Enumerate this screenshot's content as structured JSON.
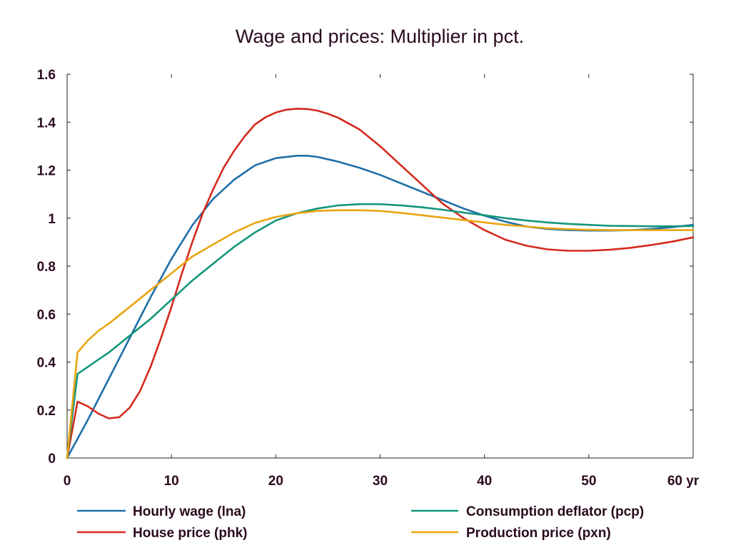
{
  "chart_data": {
    "type": "line",
    "title": "Wage and prices: Multiplier in pct.",
    "xlabel": "",
    "ylabel": "",
    "xlim": [
      0,
      60
    ],
    "ylim": [
      0,
      1.6
    ],
    "x_ticks": [
      0,
      10,
      20,
      30,
      40,
      50,
      60
    ],
    "x_tick_labels": [
      "0",
      "10",
      "20",
      "30",
      "40",
      "50",
      "60 yr"
    ],
    "y_ticks": [
      0,
      0.2,
      0.4,
      0.6,
      0.8,
      1,
      1.2,
      1.4,
      1.6
    ],
    "y_tick_labels": [
      "0",
      "0.2",
      "0.4",
      "0.6",
      "0.8",
      "1",
      "1.2",
      "1.4",
      "1.6"
    ],
    "grid": false,
    "legend_position": "bottom",
    "series": [
      {
        "name": "Hourly wage (lna)",
        "color": "#1f6fa8",
        "x": [
          0,
          2,
          4,
          6,
          8,
          10,
          12,
          14,
          16,
          18,
          20,
          22,
          23,
          24,
          26,
          28,
          30,
          32,
          34,
          36,
          38,
          40,
          42,
          44,
          46,
          48,
          50,
          52,
          54,
          56,
          58,
          60
        ],
        "y": [
          0,
          0.16,
          0.33,
          0.5,
          0.67,
          0.83,
          0.97,
          1.08,
          1.16,
          1.22,
          1.25,
          1.26,
          1.26,
          1.255,
          1.235,
          1.21,
          1.18,
          1.145,
          1.11,
          1.075,
          1.04,
          1.01,
          0.985,
          0.965,
          0.955,
          0.95,
          0.948,
          0.948,
          0.95,
          0.955,
          0.962,
          0.972
        ]
      },
      {
        "name": "House price (phk)",
        "color": "#d42a1e",
        "x": [
          0,
          1,
          2,
          3,
          4,
          5,
          6,
          7,
          8,
          9,
          10,
          11,
          12,
          13,
          14,
          15,
          16,
          17,
          18,
          19,
          20,
          21,
          22,
          23,
          24,
          25,
          26,
          28,
          30,
          32,
          34,
          36,
          38,
          40,
          42,
          44,
          46,
          48,
          50,
          52,
          54,
          56,
          58,
          60
        ],
        "y": [
          0,
          0.235,
          0.215,
          0.185,
          0.165,
          0.17,
          0.21,
          0.28,
          0.38,
          0.5,
          0.63,
          0.77,
          0.9,
          1.02,
          1.12,
          1.21,
          1.28,
          1.34,
          1.39,
          1.42,
          1.44,
          1.452,
          1.456,
          1.455,
          1.448,
          1.435,
          1.418,
          1.37,
          1.3,
          1.22,
          1.14,
          1.06,
          1.0,
          0.95,
          0.91,
          0.885,
          0.87,
          0.864,
          0.864,
          0.868,
          0.876,
          0.888,
          0.902,
          0.92
        ]
      },
      {
        "name": "Consumption deflator (pcp)",
        "color": "#13957a",
        "x": [
          0,
          1,
          2,
          3,
          4,
          6,
          8,
          10,
          12,
          14,
          16,
          18,
          20,
          22,
          24,
          26,
          28,
          30,
          32,
          34,
          36,
          38,
          40,
          42,
          44,
          46,
          48,
          50,
          52,
          54,
          56,
          58,
          60
        ],
        "y": [
          0,
          0.35,
          0.38,
          0.41,
          0.44,
          0.51,
          0.58,
          0.66,
          0.74,
          0.81,
          0.88,
          0.94,
          0.99,
          1.02,
          1.04,
          1.053,
          1.058,
          1.058,
          1.053,
          1.045,
          1.035,
          1.023,
          1.012,
          1.0,
          0.99,
          0.982,
          0.976,
          0.972,
          0.968,
          0.967,
          0.966,
          0.966,
          0.967
        ]
      },
      {
        "name": "Production price (pxn)",
        "color": "#e8a510",
        "x": [
          0,
          1,
          2,
          3,
          4,
          6,
          8,
          10,
          12,
          14,
          16,
          18,
          20,
          22,
          24,
          26,
          28,
          30,
          32,
          34,
          36,
          38,
          40,
          42,
          44,
          46,
          48,
          50,
          52,
          54,
          56,
          58,
          60
        ],
        "y": [
          0,
          0.44,
          0.49,
          0.53,
          0.56,
          0.63,
          0.7,
          0.77,
          0.84,
          0.89,
          0.94,
          0.98,
          1.005,
          1.02,
          1.03,
          1.033,
          1.033,
          1.03,
          1.022,
          1.012,
          1.002,
          0.992,
          0.982,
          0.972,
          0.965,
          0.958,
          0.954,
          0.951,
          0.95,
          0.95,
          0.95,
          0.95,
          0.95
        ]
      }
    ]
  }
}
